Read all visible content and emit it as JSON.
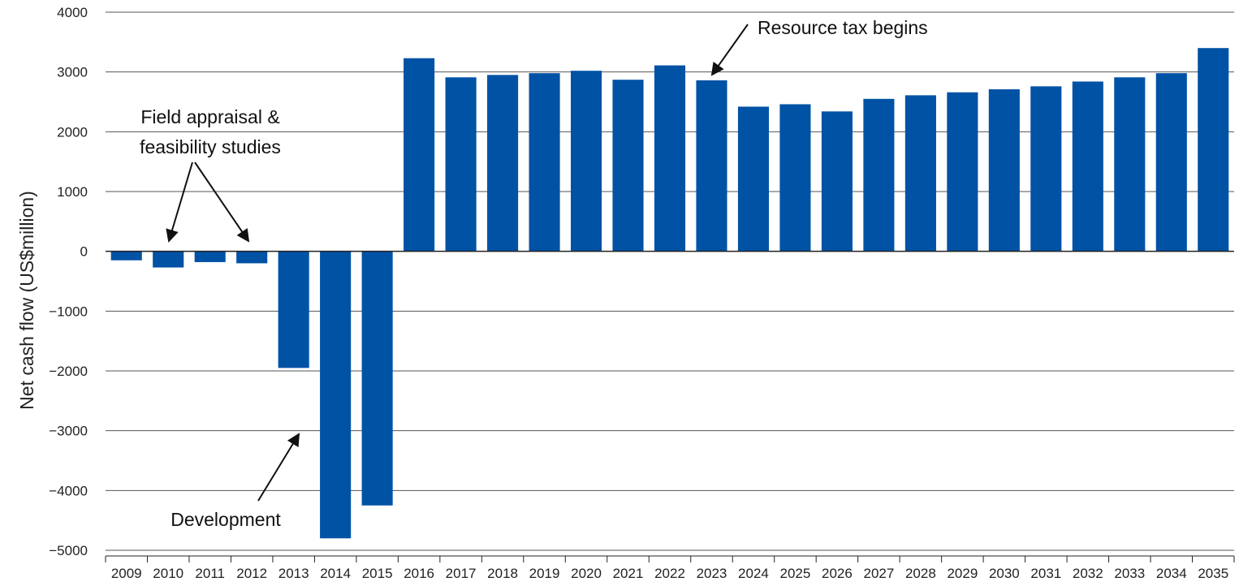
{
  "chart_data": {
    "type": "bar",
    "title": "",
    "xlabel": "",
    "ylabel": "Net cash flow (US$million)",
    "ylim": [
      -5000,
      4000
    ],
    "yticks": [
      4000,
      3000,
      2000,
      1000,
      0,
      -1000,
      -2000,
      -3000,
      -4000,
      -5000
    ],
    "ytick_labels": [
      "4000",
      "3000",
      "2000",
      "1000",
      "0",
      "−1000",
      "−2000",
      "−3000",
      "−4000",
      "−5000"
    ],
    "grid": true,
    "bar_color": "#0052a5",
    "categories": [
      "2009",
      "2010",
      "2011",
      "2012",
      "2013",
      "2014",
      "2015",
      "2016",
      "2017",
      "2018",
      "2019",
      "2020",
      "2021",
      "2022",
      "2023",
      "2024",
      "2025",
      "2026",
      "2027",
      "2028",
      "2029",
      "2030",
      "2031",
      "2032",
      "2033",
      "2034",
      "2035"
    ],
    "values": [
      -150,
      -270,
      -180,
      -200,
      -1950,
      -4800,
      -4250,
      3230,
      2910,
      2950,
      2980,
      3020,
      2870,
      3110,
      2860,
      2420,
      2460,
      2340,
      2550,
      2610,
      2660,
      2710,
      2760,
      2840,
      2910,
      2980,
      3400
    ],
    "annotations": [
      {
        "lines": [
          "Field appraisal &",
          "feasibility studies"
        ],
        "targets": [
          "2010",
          "2012"
        ]
      },
      {
        "lines": [
          "Development"
        ],
        "targets": [
          "2013"
        ]
      },
      {
        "lines": [
          "Resource tax begins"
        ],
        "targets": [
          "2023"
        ]
      }
    ]
  }
}
